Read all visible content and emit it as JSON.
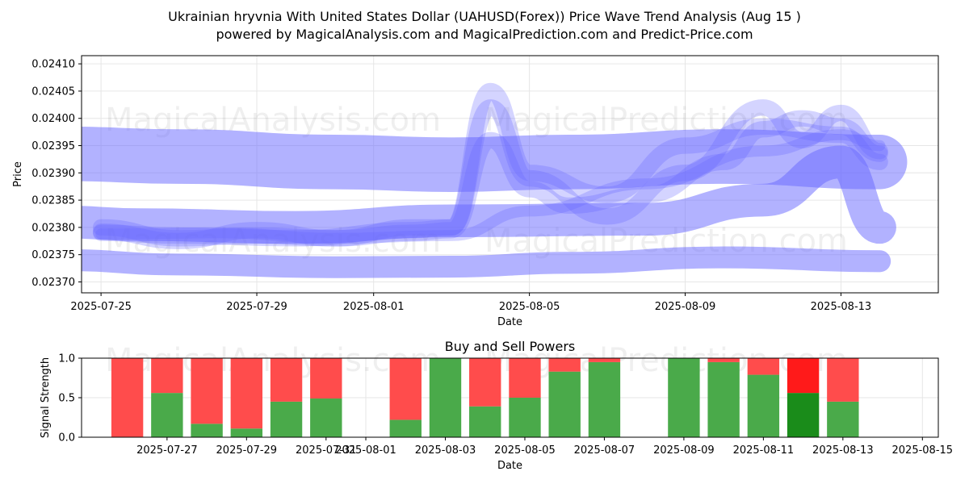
{
  "chart_title_line1": "Ukrainian hryvnia With United States Dollar (UAHUSD(Forex)) Price Wave Trend Analysis (Aug 15 )",
  "chart_title_line2": "powered by MagicalAnalysis.com and MagicalPrediction.com and Predict-Price.com",
  "watermarks": [
    "MagicalAnalysis.com",
    "MagicalPrediction.com"
  ],
  "colors": {
    "band": "#6666ff",
    "buy": "#4aaa4a",
    "sell": "#ff4c4c",
    "buy_dark": "#1a8c1a",
    "sell_dark": "#ff1a1a"
  },
  "chart_data": [
    {
      "type": "area",
      "xlabel": "Date",
      "ylabel": "Price",
      "ylim": [
        0.02368,
        0.024115
      ],
      "xlim": [
        "2025-07-24",
        "2025-08-15"
      ],
      "x_ticks": [
        "2025-07-25",
        "2025-07-29",
        "2025-08-01",
        "2025-08-05",
        "2025-08-09",
        "2025-08-13"
      ],
      "y_ticks": [
        "0.02370",
        "0.02375",
        "0.02380",
        "0.02385",
        "0.02390",
        "0.02395",
        "0.02400",
        "0.02405",
        "0.02410"
      ],
      "series": [
        {
          "x": [
            "2025-07-24",
            "2025-07-27",
            "2025-07-31",
            "2025-08-03",
            "2025-08-06",
            "2025-08-10",
            "2025-08-14"
          ],
          "values": [
            0.023935,
            0.02393,
            0.02392,
            0.023915,
            0.02392,
            0.02393,
            0.02392
          ],
          "width": 0.0001
        },
        {
          "x": [
            "2025-07-24",
            "2025-07-27",
            "2025-07-31",
            "2025-08-03",
            "2025-08-06",
            "2025-08-10",
            "2025-08-14"
          ],
          "values": [
            0.02374,
            0.023732,
            0.023727,
            0.023728,
            0.023735,
            0.023745,
            0.023738
          ],
          "width": 4e-05
        },
        {
          "x": [
            "2025-07-24",
            "2025-07-26",
            "2025-07-30",
            "2025-08-03",
            "2025-08-08",
            "2025-08-11",
            "2025-08-13",
            "2025-08-14"
          ],
          "values": [
            0.02381,
            0.023805,
            0.0238,
            0.023812,
            0.023815,
            0.02385,
            0.02392,
            0.0238
          ],
          "width": 6e-05
        },
        {
          "x": [
            "2025-07-25",
            "2025-07-27",
            "2025-07-29",
            "2025-07-31",
            "2025-08-02",
            "2025-08-03",
            "2025-08-04",
            "2025-08-05",
            "2025-08-07",
            "2025-08-09",
            "2025-08-11",
            "2025-08-12",
            "2025-08-13",
            "2025-08-14"
          ],
          "values": [
            0.0238,
            0.02378,
            0.023785,
            0.02378,
            0.0238,
            0.0238,
            0.02402,
            0.02389,
            0.02382,
            0.0239,
            0.02402,
            0.02396,
            0.02401,
            0.02394
          ],
          "width": 3e-05
        },
        {
          "x": [
            "2025-07-25",
            "2025-07-27",
            "2025-07-29",
            "2025-07-31",
            "2025-08-02",
            "2025-08-03",
            "2025-08-04",
            "2025-08-05",
            "2025-08-06",
            "2025-08-08",
            "2025-08-10",
            "2025-08-11",
            "2025-08-12",
            "2025-08-13",
            "2025-08-14"
          ],
          "values": [
            0.023792,
            0.023775,
            0.023795,
            0.02378,
            0.02379,
            0.023795,
            0.02396,
            0.02387,
            0.02384,
            0.02386,
            0.02392,
            0.02398,
            0.024,
            0.023985,
            0.023935
          ],
          "width": 3e-05
        },
        {
          "x": [
            "2025-07-25",
            "2025-07-28",
            "2025-07-31",
            "2025-08-03",
            "2025-08-05",
            "2025-08-08",
            "2025-08-11",
            "2025-08-13",
            "2025-08-14"
          ],
          "values": [
            0.023788,
            0.02379,
            0.02378,
            0.023785,
            0.02383,
            0.02388,
            0.02394,
            0.02397,
            0.02395
          ],
          "width": 2e-05
        },
        {
          "x": [
            "2025-07-25",
            "2025-07-27",
            "2025-07-30",
            "2025-08-02",
            "2025-08-03",
            "2025-08-04",
            "2025-08-05",
            "2025-08-07",
            "2025-08-09",
            "2025-08-11",
            "2025-08-13",
            "2025-08-14"
          ],
          "values": [
            0.02379,
            0.023785,
            0.02378,
            0.023795,
            0.0238,
            0.02405,
            0.0239,
            0.02386,
            0.02395,
            0.023985,
            0.02397,
            0.02392
          ],
          "width": 3e-05
        }
      ]
    },
    {
      "type": "bar",
      "title": "Buy and Sell Powers",
      "xlabel": "Date",
      "ylabel": "Signal Strength",
      "ylim": [
        0,
        1.0
      ],
      "xlim": [
        "2025-07-25",
        "2025-08-15"
      ],
      "x_ticks": [
        "2025-07-27",
        "2025-07-29",
        "2025-07-31",
        "2025-08-01",
        "2025-08-03",
        "2025-08-05",
        "2025-08-07",
        "2025-08-09",
        "2025-08-11",
        "2025-08-13",
        "2025-08-15"
      ],
      "y_ticks": [
        "0.0",
        "0.5",
        "1.0"
      ],
      "categories": [
        "2025-07-26",
        "2025-07-27",
        "2025-07-28",
        "2025-07-29",
        "2025-07-30",
        "2025-07-31",
        "2025-08-02",
        "2025-08-03",
        "2025-08-04",
        "2025-08-05",
        "2025-08-06",
        "2025-08-07",
        "2025-08-09",
        "2025-08-10",
        "2025-08-11",
        "2025-08-12",
        "2025-08-13"
      ],
      "series": [
        {
          "name": "Buy",
          "values": [
            0.0,
            0.56,
            0.17,
            0.11,
            0.45,
            0.49,
            0.22,
            1.0,
            0.39,
            0.5,
            0.83,
            0.95,
            1.0,
            0.95,
            0.79,
            0.56,
            0.45
          ]
        },
        {
          "name": "Sell",
          "values": [
            1.0,
            0.44,
            0.83,
            0.89,
            0.55,
            0.51,
            0.78,
            0.0,
            0.61,
            0.5,
            0.17,
            0.05,
            0.0,
            0.05,
            0.21,
            0.44,
            0.55
          ]
        }
      ],
      "highlight_index": 15
    }
  ]
}
